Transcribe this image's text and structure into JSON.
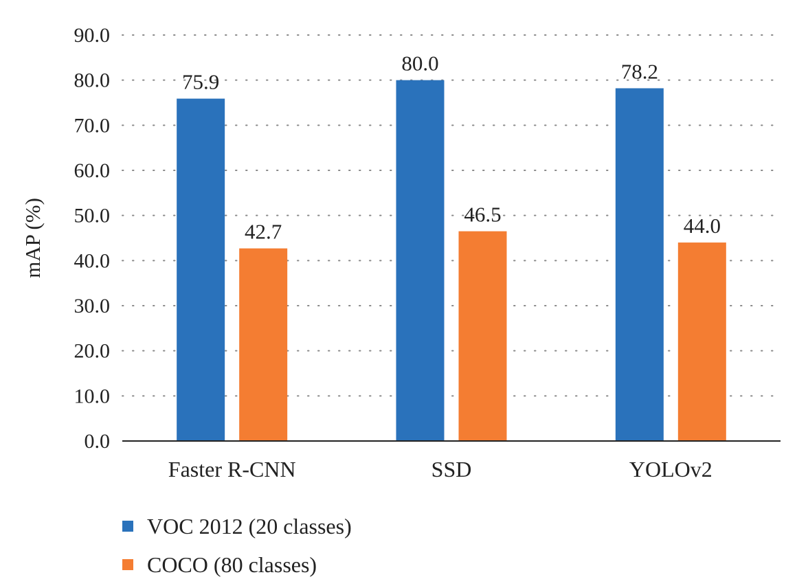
{
  "chart_data": {
    "type": "bar",
    "title": "",
    "xlabel": "",
    "ylabel": "mAP (%)",
    "ylim": [
      0,
      90
    ],
    "yticks": [
      "0.0",
      "10.0",
      "20.0",
      "30.0",
      "40.0",
      "50.0",
      "60.0",
      "70.0",
      "80.0",
      "90.0"
    ],
    "categories": [
      "Faster R-CNN",
      "SSD",
      "YOLOv2"
    ],
    "series": [
      {
        "name": "VOC 2012 (20 classes)",
        "values": [
          75.9,
          80.0,
          78.2
        ],
        "labels": [
          "75.9",
          "80.0",
          "78.2"
        ],
        "color": "#2a72bb"
      },
      {
        "name": "COCO (80 classes)",
        "values": [
          42.7,
          46.5,
          44.0
        ],
        "labels": [
          "42.7",
          "46.5",
          "44.0"
        ],
        "color": "#f47d32"
      }
    ],
    "grid": true,
    "legend": "bottom-left"
  }
}
